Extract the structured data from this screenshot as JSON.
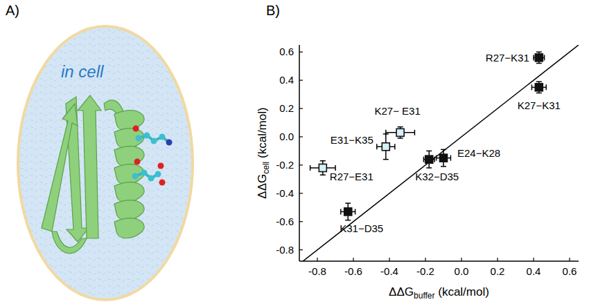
{
  "figure": {
    "panel_a": {
      "label": "A)",
      "text": "in cell"
    },
    "panel_b": {
      "label": "B)"
    }
  },
  "chart_data": {
    "type": "scatter",
    "x_label": {
      "main": "ΔΔG",
      "sub": "buffer",
      "unit": " (kcal/mol)"
    },
    "y_label": {
      "main": "ΔΔG",
      "sub": "cell",
      "unit": " (kcal/mol)"
    },
    "x": [
      0.43,
      0.43,
      -0.34,
      -0.42,
      -0.77,
      -0.18,
      -0.1,
      -0.63
    ],
    "series": [
      {
        "labels": [
          "R27−K31",
          "K27−K31",
          "K27− E31",
          "E31−K35",
          "R27−E31",
          "K32−D35",
          "E24−K28",
          "K31−D35"
        ],
        "values": [
          0.56,
          0.35,
          0.03,
          -0.07,
          -0.22,
          -0.16,
          -0.15,
          -0.53
        ],
        "x_err": [
          0.03,
          0.04,
          0.08,
          0.05,
          0.07,
          0.03,
          0.04,
          0.04
        ],
        "y_err": [
          0.04,
          0.04,
          0.04,
          0.09,
          0.05,
          0.06,
          0.06,
          0.06
        ],
        "colors": [
          "#111111",
          "#111111",
          "#d6f1f7",
          "#d6f1f7",
          "#d6f1f7",
          "#111111",
          "#111111",
          "#111111"
        ],
        "marker": "square"
      }
    ],
    "xlim": [
      -0.9,
      0.65
    ],
    "ylim": [
      -0.88,
      0.65
    ],
    "xticks": [
      -0.8,
      -0.6,
      -0.4,
      -0.2,
      {
        "value": 0,
        "label": "0.0"
      },
      0.2,
      0.4,
      0.6
    ],
    "yticks": [
      -0.8,
      -0.6,
      -0.4,
      -0.2,
      {
        "value": 0,
        "label": "0.0"
      },
      0.2,
      0.4,
      0.6
    ],
    "grid": false
  }
}
